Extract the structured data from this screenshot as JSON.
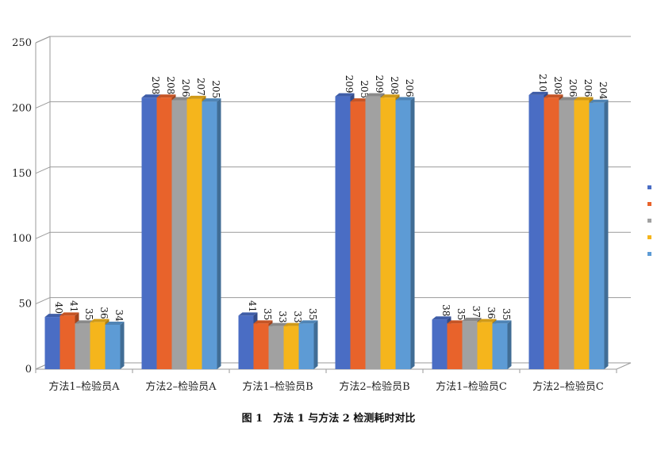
{
  "caption": "图 1　方法 1 与方法 2 检测耗时对比",
  "chart_data": {
    "type": "bar",
    "title": "",
    "xlabel": "",
    "ylabel": "",
    "ylim": [
      0,
      250
    ],
    "yticks": [
      0,
      50,
      100,
      150,
      200,
      250
    ],
    "grid": true,
    "legend_position": "right",
    "categories": [
      "方法1–检验员A",
      "方法2–检验员A",
      "方法1–检验员B",
      "方法2–检验员B",
      "方法1–检验员C",
      "方法2–检验员C"
    ],
    "series": [
      {
        "color": "#4a6dc4",
        "values": [
          40,
          208,
          41,
          209,
          38,
          210
        ]
      },
      {
        "color": "#e8632b",
        "values": [
          41,
          208,
          35,
          205,
          35,
          208
        ]
      },
      {
        "color": "#a1a1a1",
        "values": [
          35,
          206,
          33,
          209,
          37,
          206
        ]
      },
      {
        "color": "#f5b51c",
        "values": [
          36,
          207,
          33,
          208,
          36,
          206
        ]
      },
      {
        "color": "#5d9bd5",
        "values": [
          34,
          205,
          35,
          206,
          35,
          204
        ]
      }
    ]
  }
}
